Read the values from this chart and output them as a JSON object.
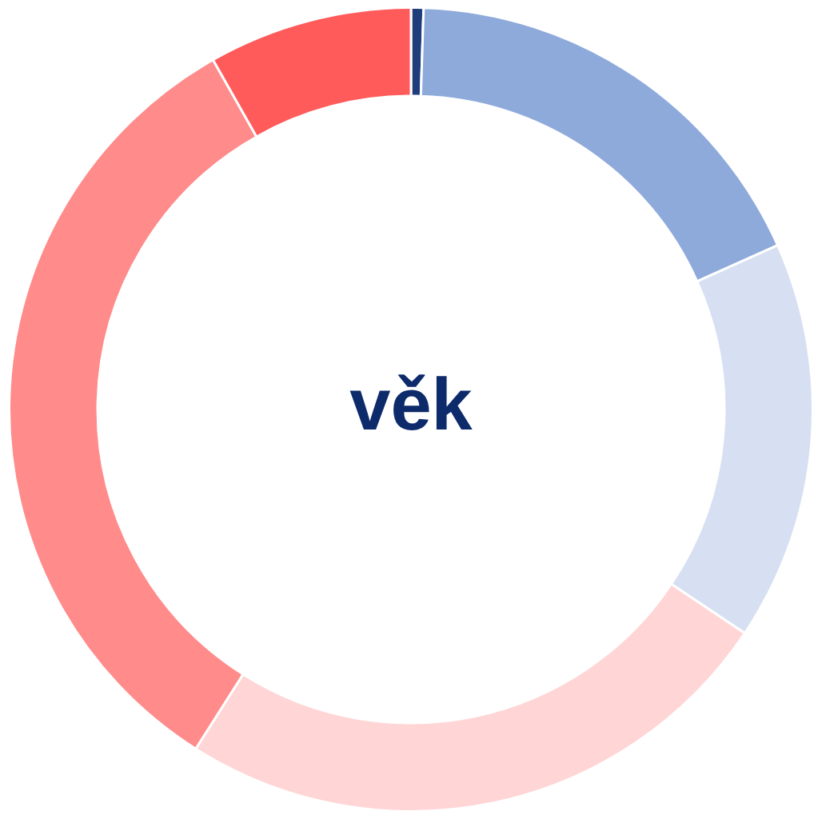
{
  "chart_data": {
    "type": "donut",
    "title": "věk",
    "categories": [
      null,
      null,
      null,
      null,
      null,
      null
    ],
    "values": [
      0.5,
      17.8,
      16.1,
      24.6,
      32.8,
      8.2
    ],
    "colors": [
      "#1f3d7a",
      "#8eaadb",
      "#d6e0f2",
      "#ffd5d5",
      "#ff8b8b",
      "#ff5b5b"
    ],
    "legend": false
  }
}
